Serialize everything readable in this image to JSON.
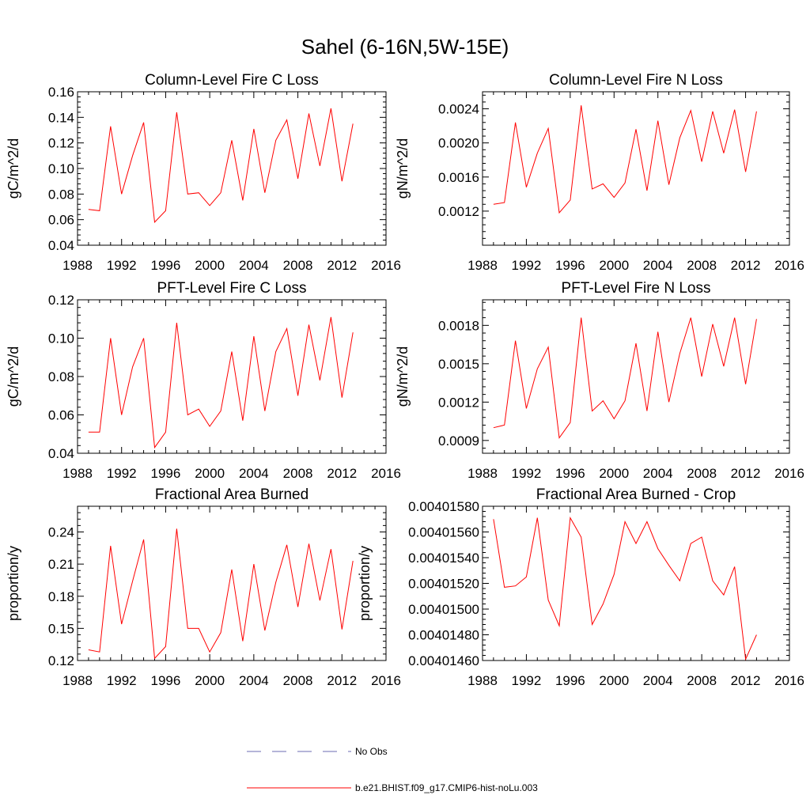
{
  "figure": {
    "title": "Sahel (6-16N,5W-15E)",
    "line_color": "#ff0000",
    "obs_color": "#6b6bb3"
  },
  "legend": {
    "entries": [
      {
        "label": "No Obs",
        "style": "dashed",
        "color": "#6b6bb3"
      },
      {
        "label": "b.e21.BHIST.f09_g17.CMIP6-hist-noLu.003",
        "style": "solid",
        "color": "#ff0000"
      }
    ]
  },
  "chart_data": [
    {
      "type": "line",
      "title": "Column-Level Fire C Loss",
      "ylabel": "gC/m^2/d",
      "xlim": [
        1988,
        2016
      ],
      "ylim": [
        0.04,
        0.16
      ],
      "xticks": [
        "1988",
        "1992",
        "1996",
        "2000",
        "2004",
        "2008",
        "2012",
        "2016"
      ],
      "yticks": [
        "0.04",
        "0.06",
        "0.08",
        "0.10",
        "0.12",
        "0.14",
        "0.16"
      ],
      "x": [
        1989,
        1990,
        1991,
        1992,
        1993,
        1994,
        1995,
        1996,
        1997,
        1998,
        1999,
        2000,
        2001,
        2002,
        2003,
        2004,
        2005,
        2006,
        2007,
        2008,
        2009,
        2010,
        2011,
        2012,
        2013
      ],
      "series": [
        {
          "name": "b.e21.BHIST.f09_g17.CMIP6-hist-noLu.003",
          "values": [
            0.068,
            0.067,
            0.133,
            0.08,
            0.11,
            0.136,
            0.058,
            0.067,
            0.144,
            0.08,
            0.081,
            0.071,
            0.081,
            0.122,
            0.075,
            0.131,
            0.081,
            0.122,
            0.138,
            0.092,
            0.143,
            0.102,
            0.147,
            0.09,
            0.135
          ]
        }
      ]
    },
    {
      "type": "line",
      "title": "Column-Level Fire N Loss",
      "ylabel": "gN/m^2/d",
      "xlim": [
        1988,
        2016
      ],
      "ylim": [
        0.0008,
        0.0026
      ],
      "xticks": [
        "1988",
        "1992",
        "1996",
        "2000",
        "2004",
        "2008",
        "2012",
        "2016"
      ],
      "yticks": [
        "0.0012",
        "0.0016",
        "0.0020",
        "0.0024"
      ],
      "x": [
        1989,
        1990,
        1991,
        1992,
        1993,
        1994,
        1995,
        1996,
        1997,
        1998,
        1999,
        2000,
        2001,
        2002,
        2003,
        2004,
        2005,
        2006,
        2007,
        2008,
        2009,
        2010,
        2011,
        2012,
        2013
      ],
      "series": [
        {
          "name": "b.e21.BHIST.f09_g17.CMIP6-hist-noLu.003",
          "values": [
            0.00128,
            0.0013,
            0.00224,
            0.00148,
            0.00188,
            0.00217,
            0.00118,
            0.00133,
            0.00244,
            0.00146,
            0.00152,
            0.00136,
            0.00153,
            0.00216,
            0.00144,
            0.00226,
            0.00151,
            0.00206,
            0.00238,
            0.00178,
            0.00237,
            0.00188,
            0.00239,
            0.00166,
            0.00237
          ]
        }
      ]
    },
    {
      "type": "line",
      "title": "PFT-Level Fire C Loss",
      "ylabel": "gC/m^2/d",
      "xlim": [
        1988,
        2016
      ],
      "ylim": [
        0.04,
        0.12
      ],
      "xticks": [
        "1988",
        "1992",
        "1996",
        "2000",
        "2004",
        "2008",
        "2012",
        "2016"
      ],
      "yticks": [
        "0.04",
        "0.06",
        "0.08",
        "0.10",
        "0.12"
      ],
      "x": [
        1989,
        1990,
        1991,
        1992,
        1993,
        1994,
        1995,
        1996,
        1997,
        1998,
        1999,
        2000,
        2001,
        2002,
        2003,
        2004,
        2005,
        2006,
        2007,
        2008,
        2009,
        2010,
        2011,
        2012,
        2013
      ],
      "series": [
        {
          "name": "b.e21.BHIST.f09_g17.CMIP6-hist-noLu.003",
          "values": [
            0.051,
            0.051,
            0.1,
            0.06,
            0.085,
            0.1,
            0.043,
            0.051,
            0.108,
            0.06,
            0.063,
            0.054,
            0.062,
            0.093,
            0.057,
            0.101,
            0.062,
            0.093,
            0.105,
            0.07,
            0.107,
            0.078,
            0.111,
            0.069,
            0.103
          ]
        }
      ]
    },
    {
      "type": "line",
      "title": "PFT-Level Fire N Loss",
      "ylabel": "gN/m^2/d",
      "xlim": [
        1988,
        2016
      ],
      "ylim": [
        0.0008,
        0.002
      ],
      "xticks": [
        "1988",
        "1992",
        "1996",
        "2000",
        "2004",
        "2008",
        "2012",
        "2016"
      ],
      "yticks": [
        "0.0009",
        "0.0012",
        "0.0015",
        "0.0018"
      ],
      "x": [
        1989,
        1990,
        1991,
        1992,
        1993,
        1994,
        1995,
        1996,
        1997,
        1998,
        1999,
        2000,
        2001,
        2002,
        2003,
        2004,
        2005,
        2006,
        2007,
        2008,
        2009,
        2010,
        2011,
        2012,
        2013
      ],
      "series": [
        {
          "name": "b.e21.BHIST.f09_g17.CMIP6-hist-noLu.003",
          "values": [
            0.001,
            0.00102,
            0.00168,
            0.00115,
            0.00146,
            0.00163,
            0.00092,
            0.00104,
            0.00186,
            0.00113,
            0.00121,
            0.00107,
            0.00121,
            0.00166,
            0.00113,
            0.00175,
            0.0012,
            0.00158,
            0.00186,
            0.0014,
            0.00181,
            0.00148,
            0.00186,
            0.00134,
            0.00185
          ]
        }
      ]
    },
    {
      "type": "line",
      "title": "Fractional Area Burned",
      "ylabel": "proportion/y",
      "xlim": [
        1988,
        2016
      ],
      "ylim": [
        0.12,
        0.264
      ],
      "xticks": [
        "1988",
        "1992",
        "1996",
        "2000",
        "2004",
        "2008",
        "2012",
        "2016"
      ],
      "yticks": [
        "0.12",
        "0.15",
        "0.18",
        "0.21",
        "0.24"
      ],
      "x": [
        1989,
        1990,
        1991,
        1992,
        1993,
        1994,
        1995,
        1996,
        1997,
        1998,
        1999,
        2000,
        2001,
        2002,
        2003,
        2004,
        2005,
        2006,
        2007,
        2008,
        2009,
        2010,
        2011,
        2012,
        2013
      ],
      "series": [
        {
          "name": "b.e21.BHIST.f09_g17.CMIP6-hist-noLu.003",
          "values": [
            0.13,
            0.128,
            0.227,
            0.154,
            0.194,
            0.233,
            0.122,
            0.133,
            0.243,
            0.15,
            0.15,
            0.128,
            0.146,
            0.205,
            0.138,
            0.21,
            0.148,
            0.193,
            0.228,
            0.17,
            0.229,
            0.176,
            0.224,
            0.149,
            0.213
          ]
        }
      ]
    },
    {
      "type": "line",
      "title": "Fractional Area Burned - Crop",
      "ylabel": "proportion/y",
      "xlim": [
        1988,
        2016
      ],
      "ylim": [
        0.0040146,
        0.0040158
      ],
      "xticks": [
        "1988",
        "1992",
        "1996",
        "2000",
        "2004",
        "2008",
        "2012",
        "2016"
      ],
      "yticks": [
        "0.00401460",
        "0.00401480",
        "0.00401500",
        "0.00401520",
        "0.00401540",
        "0.00401560",
        "0.00401580"
      ],
      "x": [
        1989,
        1990,
        1991,
        1992,
        1993,
        1994,
        1995,
        1996,
        1997,
        1998,
        1999,
        2000,
        2001,
        2002,
        2003,
        2004,
        2005,
        2006,
        2007,
        2008,
        2009,
        2010,
        2011,
        2012,
        2013
      ],
      "series": [
        {
          "name": "b.e21.BHIST.f09_g17.CMIP6-hist-noLu.003",
          "values": [
            0.0040157,
            0.00401517,
            0.00401518,
            0.00401525,
            0.00401571,
            0.00401507,
            0.00401487,
            0.00401571,
            0.00401556,
            0.00401488,
            0.00401504,
            0.00401527,
            0.00401568,
            0.00401551,
            0.00401568,
            0.00401547,
            0.00401534,
            0.00401522,
            0.00401551,
            0.00401556,
            0.00401522,
            0.00401511,
            0.00401533,
            0.00401461,
            0.0040148
          ]
        }
      ]
    }
  ]
}
